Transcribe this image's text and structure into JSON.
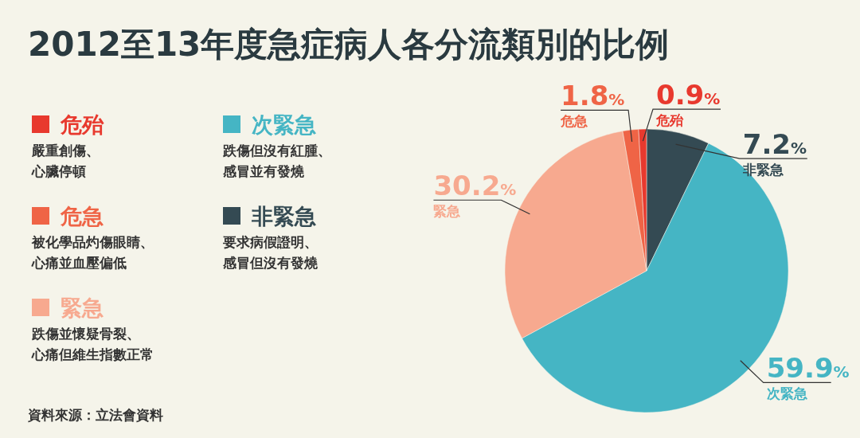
{
  "chart_data": {
    "type": "pie",
    "title": "2012至13年度急症病人各分流類別的比例",
    "categories": [
      "非緊急",
      "次緊急",
      "緊急",
      "危急",
      "危殆"
    ],
    "values": [
      7.2,
      59.9,
      30.2,
      1.8,
      0.9
    ],
    "colors": [
      "#344a53",
      "#45b5c4",
      "#f7a98f",
      "#ef6446",
      "#e8392e"
    ],
    "value_labels": [
      "7.2%",
      "59.9%",
      "30.2%",
      "1.8%",
      "0.9%"
    ],
    "legend": "left",
    "annotations": [
      "要求病假證明、感冒但沒有發燒",
      "跌傷但沒有紅腫、感冒並有發燒",
      "跌傷並懷疑骨裂、心痛但維生指數正常",
      "被化學品灼傷眼睛、心痛並血壓偏低",
      "嚴重創傷、心臟停頓",
      "資料來源：立法會資料"
    ]
  }
}
